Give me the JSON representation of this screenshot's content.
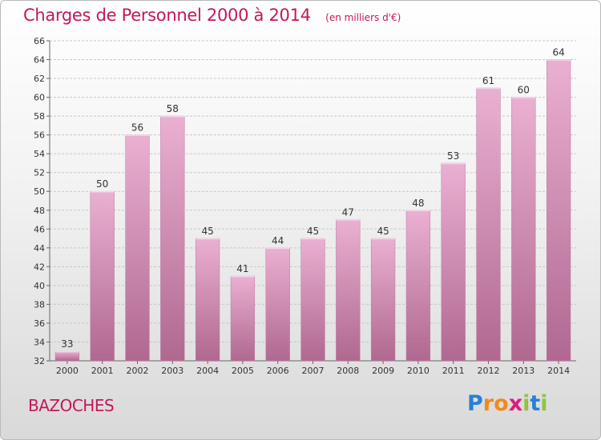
{
  "chart_data": {
    "type": "bar",
    "title": "Charges de Personnel 2000 à 2014",
    "subtitle": "(en milliers d'€)",
    "categories": [
      "2000",
      "2001",
      "2002",
      "2003",
      "2004",
      "2005",
      "2006",
      "2007",
      "2008",
      "2009",
      "2010",
      "2011",
      "2012",
      "2013",
      "2014"
    ],
    "values": [
      33,
      50,
      56,
      58,
      45,
      41,
      44,
      45,
      47,
      45,
      48,
      53,
      61,
      60,
      64
    ],
    "ylim": [
      32,
      66
    ],
    "yticks": [
      32,
      34,
      36,
      38,
      40,
      42,
      44,
      46,
      48,
      50,
      52,
      54,
      56,
      58,
      60,
      62,
      64,
      66
    ],
    "grid": true,
    "bar_color": "#d98cb3"
  },
  "commune": "BAZOCHES",
  "brand": {
    "letters": [
      "P",
      "r",
      "o",
      "x",
      "i",
      "t",
      "i"
    ],
    "colors": [
      "#2a7fd4",
      "#f08a1c",
      "#f08a1c",
      "#e0197d",
      "#8cc63f",
      "#2a7fd4",
      "#8cc63f"
    ]
  }
}
